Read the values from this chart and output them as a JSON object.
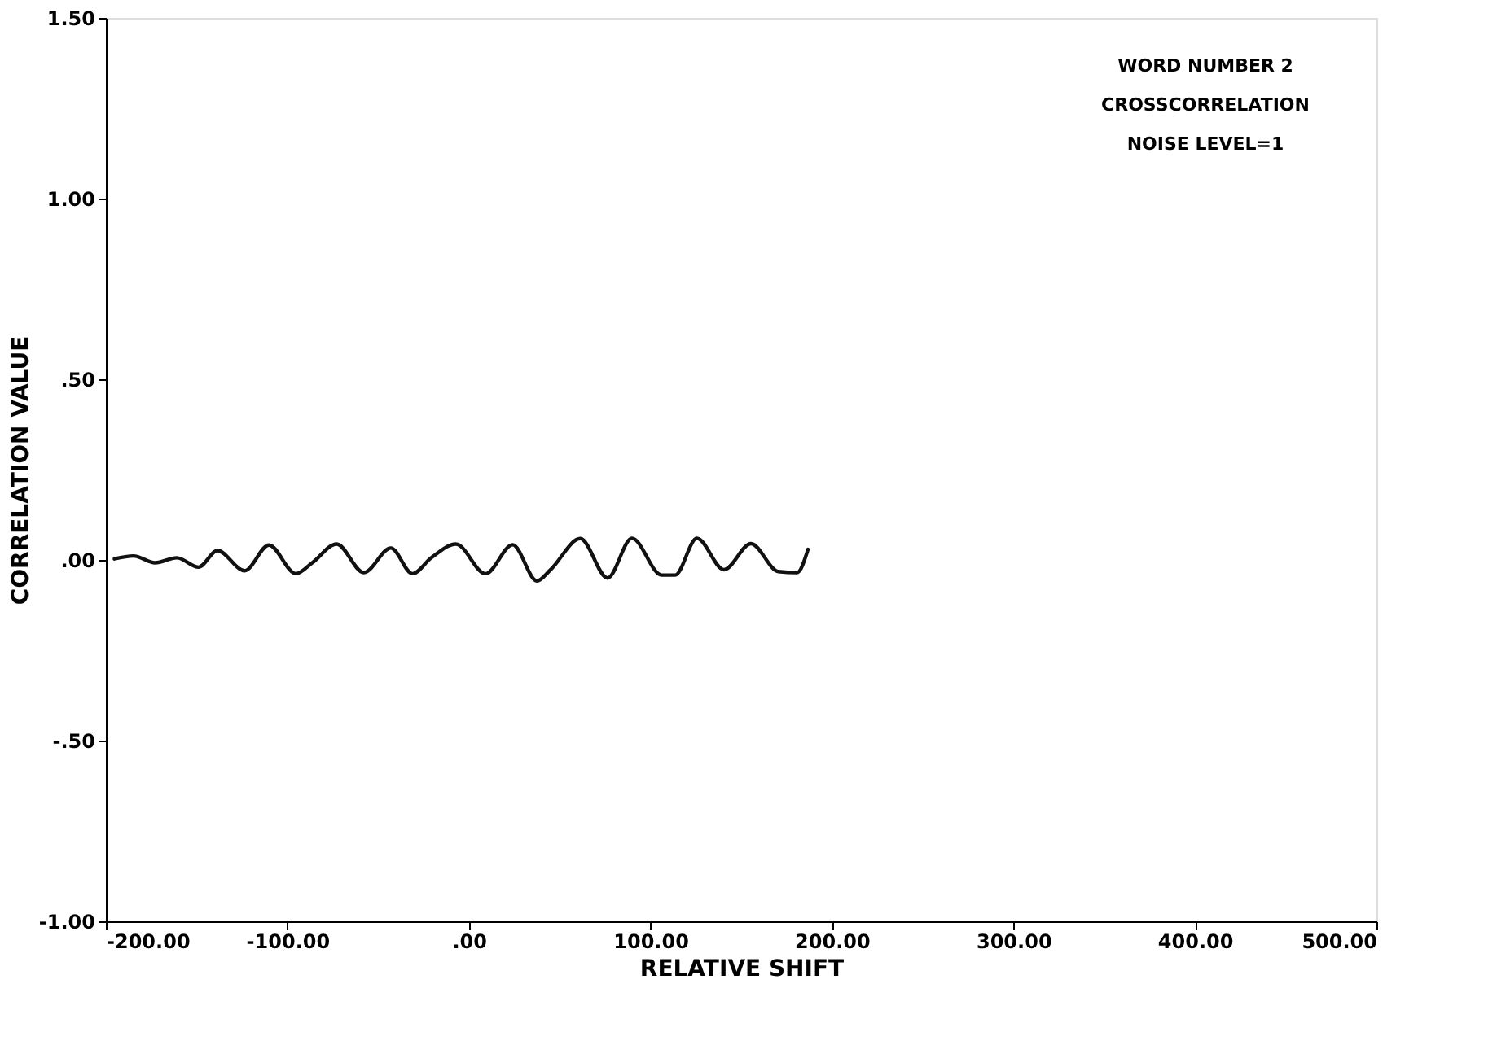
{
  "chart_data": {
    "type": "line",
    "xlabel": "RELATIVE SHIFT",
    "ylabel": "CORRELATION VALUE",
    "annotations": [
      "WORD NUMBER 2",
      "CROSSCORRELATION",
      "NOISE LEVEL=1"
    ],
    "x": [
      -195.3,
      -184.8,
      -172.9,
      -160.9,
      -149,
      -138.5,
      -123.6,
      -110.2,
      -95.3,
      -86.3,
      -72.9,
      -57.9,
      -43,
      -31.1,
      -20.7,
      -7.2,
      9.2,
      24.1,
      37.5,
      45,
      61.4,
      76.4,
      89.8,
      106.2,
      113.6,
      125.6,
      140.5,
      155.4,
      170.4,
      180.8,
      186.8
    ],
    "series": [
      {
        "color": "#111111",
        "values": [
          0.003,
          0.011,
          -0.008,
          0.006,
          -0.02,
          0.026,
          -0.03,
          0.041,
          -0.038,
          -0.008,
          0.044,
          -0.035,
          0.033,
          -0.038,
          0.006,
          0.044,
          -0.038,
          0.042,
          -0.058,
          -0.027,
          0.059,
          -0.05,
          0.06,
          -0.042,
          -0.042,
          0.06,
          -0.027,
          0.045,
          -0.032,
          -0.035,
          0.029
        ]
      }
    ],
    "xlim": [
      -200,
      500
    ],
    "xticks": [
      {
        "value": -200,
        "label": "-200.00"
      },
      {
        "value": -100,
        "label": "-100.00"
      },
      {
        "value": 0,
        "label": ".00"
      },
      {
        "value": 100,
        "label": "100.00"
      },
      {
        "value": 200,
        "label": "200.00"
      },
      {
        "value": 300,
        "label": "300.00"
      },
      {
        "value": 400,
        "label": "400.00"
      },
      {
        "value": 500,
        "label": "500.00"
      }
    ],
    "ylim": [
      -1,
      1.5
    ],
    "yticks": [
      {
        "value": -1,
        "label": "-1.00"
      },
      {
        "value": -0.5,
        "label": "-.50"
      },
      {
        "value": 0,
        "label": ".00"
      },
      {
        "value": 0.5,
        "label": ".50"
      },
      {
        "value": 1,
        "label": "1.00"
      },
      {
        "value": 1.5,
        "label": "1.50"
      }
    ],
    "grid": false,
    "marker": "none",
    "line_style": "solid"
  }
}
